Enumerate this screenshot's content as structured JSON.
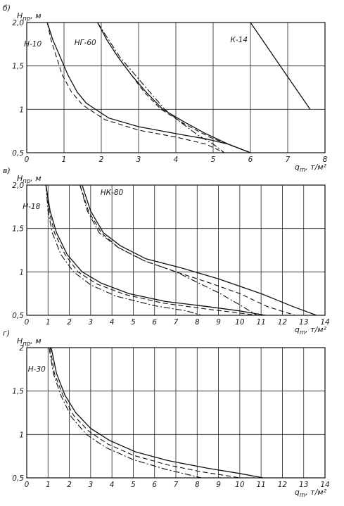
{
  "chart_data": [
    {
      "type": "line",
      "panel_label": "б)",
      "ylabel": "H_пр, м",
      "xlabel": "q_m, т/м²",
      "xlim": [
        0,
        8
      ],
      "ylim": [
        0.5,
        2.0
      ],
      "x_ticks": [
        "0",
        "1",
        "2",
        "3",
        "4",
        "5",
        "6",
        "7",
        "8"
      ],
      "y_ticks": [
        "0,5",
        "1",
        "1,5",
        "2,0"
      ],
      "grid": true,
      "series": [
        {
          "name": "Н-10",
          "style": "solid",
          "points": [
            [
              0.55,
              2.0
            ],
            [
              0.7,
              1.8
            ],
            [
              0.9,
              1.6
            ],
            [
              1.1,
              1.4
            ],
            [
              1.35,
              1.2
            ],
            [
              1.6,
              1.07
            ],
            [
              2.2,
              0.9
            ],
            [
              3.0,
              0.8
            ],
            [
              4.0,
              0.72
            ],
            [
              4.8,
              0.66
            ],
            [
              5.4,
              0.6
            ],
            [
              6.0,
              0.5
            ]
          ]
        },
        {
          "name": "Н-10",
          "style": "dashed",
          "points": [
            [
              0.55,
              2.0
            ],
            [
              0.65,
              1.8
            ],
            [
              0.8,
              1.6
            ],
            [
              0.95,
              1.4
            ],
            [
              1.2,
              1.2
            ],
            [
              1.5,
              1.05
            ],
            [
              2.1,
              0.88
            ],
            [
              3.0,
              0.76
            ],
            [
              4.0,
              0.68
            ],
            [
              4.8,
              0.6
            ],
            [
              5.3,
              0.5
            ]
          ]
        },
        {
          "name": "НГ-60",
          "style": "solid",
          "points": [
            [
              1.9,
              2.0
            ],
            [
              2.15,
              1.8
            ],
            [
              2.45,
              1.6
            ],
            [
              2.8,
              1.4
            ],
            [
              3.2,
              1.2
            ],
            [
              3.65,
              1.0
            ],
            [
              4.2,
              0.86
            ],
            [
              4.8,
              0.72
            ],
            [
              5.4,
              0.6
            ],
            [
              6.0,
              0.5
            ]
          ]
        },
        {
          "name": "НГ-60",
          "style": "dashed",
          "points": [
            [
              1.9,
              2.0
            ],
            [
              2.15,
              1.8
            ],
            [
              2.45,
              1.6
            ],
            [
              2.8,
              1.4
            ],
            [
              3.15,
              1.2
            ],
            [
              3.6,
              1.0
            ],
            [
              4.2,
              0.84
            ],
            [
              4.9,
              0.68
            ],
            [
              5.5,
              0.58
            ],
            [
              6.0,
              0.5
            ]
          ]
        },
        {
          "name": "НГ-60",
          "style": "dashdot",
          "points": [
            [
              1.9,
              2.0
            ],
            [
              2.2,
              1.8
            ],
            [
              2.5,
              1.6
            ],
            [
              2.9,
              1.4
            ],
            [
              3.3,
              1.2
            ],
            [
              3.7,
              1.0
            ],
            [
              4.1,
              0.86
            ],
            [
              4.6,
              0.7
            ],
            [
              5.0,
              0.6
            ],
            [
              5.3,
              0.5
            ]
          ]
        },
        {
          "name": "К-14",
          "style": "solid",
          "points": [
            [
              6.0,
              2.0
            ],
            [
              6.4,
              1.75
            ],
            [
              6.8,
              1.5
            ],
            [
              7.2,
              1.25
            ],
            [
              7.6,
              1.0
            ]
          ]
        }
      ]
    },
    {
      "type": "line",
      "panel_label": "в)",
      "ylabel": "H_пр, м",
      "xlabel": "q_m, т/м²",
      "xlim": [
        0,
        14
      ],
      "ylim": [
        0.5,
        2.0
      ],
      "x_ticks": [
        "0",
        "1",
        "2",
        "3",
        "4",
        "5",
        "6",
        "7",
        "8",
        "9",
        "10",
        "11",
        "12",
        "13",
        "14"
      ],
      "y_ticks": [
        "0,5",
        "1",
        "1,5",
        "2,0"
      ],
      "grid": true,
      "series": [
        {
          "name": "Н-18",
          "style": "solid",
          "points": [
            [
              0.9,
              2.0
            ],
            [
              1.1,
              1.7
            ],
            [
              1.4,
              1.45
            ],
            [
              1.9,
              1.2
            ],
            [
              2.6,
              1.0
            ],
            [
              3.5,
              0.87
            ],
            [
              4.8,
              0.75
            ],
            [
              6.5,
              0.66
            ],
            [
              8.5,
              0.6
            ],
            [
              10.0,
              0.55
            ],
            [
              11.2,
              0.5
            ]
          ]
        },
        {
          "name": "Н-18",
          "style": "dashed",
          "points": [
            [
              0.9,
              2.0
            ],
            [
              1.05,
              1.7
            ],
            [
              1.3,
              1.45
            ],
            [
              1.8,
              1.2
            ],
            [
              2.4,
              1.0
            ],
            [
              3.3,
              0.86
            ],
            [
              4.6,
              0.74
            ],
            [
              6.4,
              0.64
            ],
            [
              8.5,
              0.57
            ],
            [
              10.2,
              0.52
            ],
            [
              10.8,
              0.5
            ]
          ]
        },
        {
          "name": "Н-18",
          "style": "dashdot",
          "points": [
            [
              0.9,
              2.0
            ],
            [
              1.0,
              1.7
            ],
            [
              1.2,
              1.45
            ],
            [
              1.6,
              1.2
            ],
            [
              2.2,
              1.0
            ],
            [
              3.0,
              0.85
            ],
            [
              4.2,
              0.72
            ],
            [
              6.0,
              0.61
            ],
            [
              7.5,
              0.55
            ],
            [
              8.2,
              0.5
            ]
          ]
        },
        {
          "name": "НК-80",
          "style": "solid",
          "points": [
            [
              2.6,
              2.0
            ],
            [
              3.0,
              1.7
            ],
            [
              3.6,
              1.45
            ],
            [
              4.4,
              1.3
            ],
            [
              5.6,
              1.15
            ],
            [
              7.2,
              1.05
            ],
            [
              9.0,
              0.92
            ],
            [
              11.0,
              0.75
            ],
            [
              12.5,
              0.6
            ],
            [
              13.6,
              0.5
            ]
          ]
        },
        {
          "name": "НК-80",
          "style": "dashed",
          "points": [
            [
              2.5,
              2.0
            ],
            [
              2.9,
              1.7
            ],
            [
              3.5,
              1.45
            ],
            [
              4.3,
              1.28
            ],
            [
              5.5,
              1.13
            ],
            [
              7.0,
              1.0
            ],
            [
              8.5,
              0.88
            ],
            [
              10.0,
              0.75
            ],
            [
              11.3,
              0.6
            ],
            [
              12.6,
              0.5
            ]
          ]
        },
        {
          "name": "НК-80",
          "style": "dashdot",
          "points": [
            [
              2.5,
              2.0
            ],
            [
              2.85,
              1.7
            ],
            [
              3.4,
              1.45
            ],
            [
              4.3,
              1.28
            ],
            [
              5.5,
              1.13
            ],
            [
              7.0,
              1.0
            ],
            [
              8.0,
              0.88
            ],
            [
              9.0,
              0.76
            ],
            [
              10.0,
              0.62
            ],
            [
              10.8,
              0.5
            ]
          ]
        }
      ]
    },
    {
      "type": "line",
      "panel_label": "г)",
      "ylabel": "H_пр, м",
      "xlabel": "q_m, т/м²",
      "xlim": [
        0,
        14
      ],
      "ylim": [
        0.5,
        2.0
      ],
      "x_ticks": [
        "0",
        "1",
        "2",
        "3",
        "4",
        "5",
        "6",
        "7",
        "8",
        "9",
        "10",
        "11",
        "12",
        "13",
        "14"
      ],
      "y_ticks": [
        "0,5",
        "1",
        "1,5",
        "2"
      ],
      "grid": true,
      "series": [
        {
          "name": "Н-30",
          "style": "solid",
          "points": [
            [
              1.15,
              2.0
            ],
            [
              1.4,
              1.7
            ],
            [
              1.8,
              1.45
            ],
            [
              2.3,
              1.25
            ],
            [
              3.0,
              1.07
            ],
            [
              3.9,
              0.93
            ],
            [
              5.1,
              0.8
            ],
            [
              6.6,
              0.7
            ],
            [
              8.5,
              0.61
            ],
            [
              10.0,
              0.55
            ],
            [
              11.1,
              0.5
            ]
          ]
        },
        {
          "name": "Н-30",
          "style": "dashed",
          "points": [
            [
              1.1,
              2.0
            ],
            [
              1.3,
              1.7
            ],
            [
              1.7,
              1.45
            ],
            [
              2.2,
              1.22
            ],
            [
              2.9,
              1.04
            ],
            [
              3.8,
              0.89
            ],
            [
              5.0,
              0.76
            ],
            [
              6.6,
              0.65
            ],
            [
              8.2,
              0.57
            ],
            [
              9.5,
              0.52
            ],
            [
              10.0,
              0.5
            ]
          ]
        },
        {
          "name": "Н-30",
          "style": "dashdot",
          "points": [
            [
              1.05,
              2.0
            ],
            [
              1.25,
              1.7
            ],
            [
              1.6,
              1.45
            ],
            [
              2.1,
              1.2
            ],
            [
              2.8,
              1.0
            ],
            [
              3.7,
              0.85
            ],
            [
              5.0,
              0.71
            ],
            [
              6.5,
              0.6
            ],
            [
              7.7,
              0.53
            ],
            [
              8.2,
              0.5
            ]
          ]
        }
      ]
    }
  ]
}
